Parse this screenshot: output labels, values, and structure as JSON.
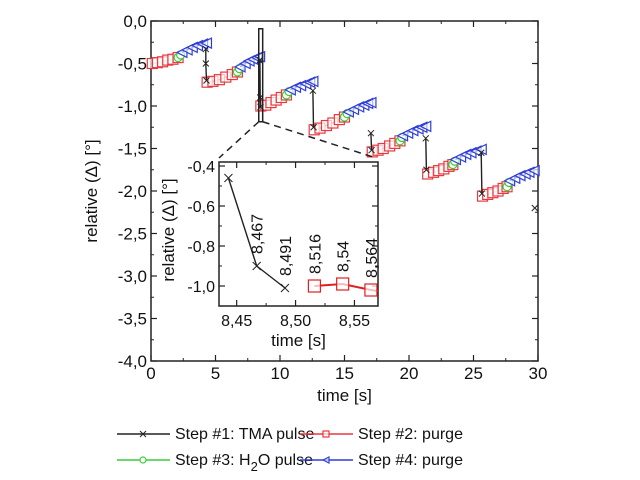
{
  "chart_data": [
    {
      "id": "main",
      "type": "line",
      "title": "",
      "xlabel": "time [s]",
      "ylabel": "relative (Δ) [°]",
      "xlim": [
        0,
        30
      ],
      "ylim": [
        -4.0,
        0.0
      ],
      "xticks": [
        0,
        5,
        10,
        15,
        20,
        25,
        30
      ],
      "xtick_labels": [
        "0",
        "5",
        "10",
        "15",
        "20",
        "25",
        "30"
      ],
      "yticks": [
        0.0,
        -0.5,
        -1.0,
        -1.5,
        -2.0,
        -2.5,
        -3.0,
        -3.5,
        -4.0
      ],
      "ytick_labels": [
        "0,0",
        "-0,5",
        "-1,0",
        "-1,5",
        "-2,0",
        "-2,5",
        "-3,0",
        "-3,5",
        "-4,0"
      ],
      "grid": false,
      "series": [
        {
          "name": "Step #1: TMA pulse",
          "color": "#222222",
          "marker": "x",
          "segments": [
            [
              [
                4.25,
                -0.33
              ],
              [
                4.25,
                -0.5
              ],
              [
                4.3,
                -0.7
              ]
            ],
            [
              [
                8.44,
                -0.46
              ],
              [
                8.467,
                -0.9
              ],
              [
                8.491,
                -1.01
              ]
            ],
            [
              [
                12.55,
                -0.82
              ],
              [
                12.6,
                -1.25
              ]
            ],
            [
              [
                17.05,
                -1.32
              ],
              [
                17.1,
                -1.52
              ]
            ],
            [
              [
                21.3,
                -1.38
              ],
              [
                21.35,
                -1.75
              ]
            ],
            [
              [
                25.6,
                -1.55
              ],
              [
                25.65,
                -2.03
              ]
            ],
            [
              [
                29.75,
                -2.2
              ]
            ]
          ]
        },
        {
          "name": "Step #2: purge",
          "color": "#e8393f",
          "marker": "square",
          "segments": [
            [
              [
                0.1,
                -0.5
              ],
              [
                0.5,
                -0.49
              ],
              [
                0.9,
                -0.48
              ],
              [
                1.3,
                -0.46
              ],
              [
                1.7,
                -0.45
              ],
              [
                2.1,
                -0.43
              ]
            ],
            [
              [
                4.35,
                -0.72
              ],
              [
                4.8,
                -0.71
              ],
              [
                5.3,
                -0.69
              ],
              [
                5.8,
                -0.66
              ],
              [
                6.3,
                -0.63
              ],
              [
                6.7,
                -0.6
              ]
            ],
            [
              [
                8.516,
                -1.0
              ],
              [
                8.9,
                -0.99
              ],
              [
                9.3,
                -0.96
              ],
              [
                9.7,
                -0.93
              ],
              [
                10.1,
                -0.9
              ],
              [
                10.5,
                -0.87
              ]
            ],
            [
              [
                12.65,
                -1.28
              ],
              [
                13.1,
                -1.26
              ],
              [
                13.6,
                -1.23
              ],
              [
                14.1,
                -1.2
              ],
              [
                14.6,
                -1.16
              ],
              [
                15.0,
                -1.13
              ]
            ],
            [
              [
                17.15,
                -1.54
              ],
              [
                17.6,
                -1.52
              ],
              [
                18.0,
                -1.5
              ],
              [
                18.5,
                -1.47
              ],
              [
                18.9,
                -1.44
              ],
              [
                19.3,
                -1.41
              ]
            ],
            [
              [
                21.45,
                -1.8
              ],
              [
                21.9,
                -1.78
              ],
              [
                22.3,
                -1.76
              ],
              [
                22.7,
                -1.74
              ],
              [
                23.1,
                -1.71
              ],
              [
                23.4,
                -1.69
              ]
            ],
            [
              [
                25.7,
                -2.06
              ],
              [
                26.1,
                -2.04
              ],
              [
                26.5,
                -2.02
              ],
              [
                26.9,
                -2.0
              ],
              [
                27.3,
                -1.97
              ],
              [
                27.6,
                -1.95
              ]
            ]
          ]
        },
        {
          "name": "Step #3: H2O pulse",
          "color": "#3ccc3c",
          "marker": "circle",
          "segments": [
            [
              [
                2.1,
                -0.43
              ],
              [
                2.3,
                -0.4
              ]
            ],
            [
              [
                6.7,
                -0.6
              ],
              [
                6.85,
                -0.56
              ]
            ],
            [
              [
                10.5,
                -0.87
              ],
              [
                10.7,
                -0.83
              ]
            ],
            [
              [
                15.0,
                -1.13
              ],
              [
                15.2,
                -1.09
              ]
            ],
            [
              [
                19.3,
                -1.41
              ],
              [
                19.45,
                -1.37
              ]
            ],
            [
              [
                23.4,
                -1.69
              ],
              [
                23.55,
                -1.65
              ]
            ],
            [
              [
                27.6,
                -1.95
              ],
              [
                27.75,
                -1.9
              ]
            ]
          ]
        },
        {
          "name": "Step #4: purge",
          "color": "#2f3fd6",
          "marker": "triangle-left",
          "segments": [
            [
              [
                2.4,
                -0.37
              ],
              [
                2.8,
                -0.34
              ],
              [
                3.2,
                -0.31
              ],
              [
                3.6,
                -0.29
              ],
              [
                4.0,
                -0.27
              ],
              [
                4.3,
                -0.26
              ]
            ],
            [
              [
                6.9,
                -0.54
              ],
              [
                7.3,
                -0.5
              ],
              [
                7.6,
                -0.47
              ],
              [
                7.9,
                -0.45
              ],
              [
                8.2,
                -0.43
              ],
              [
                8.42,
                -0.42
              ]
            ],
            [
              [
                10.8,
                -0.81
              ],
              [
                11.2,
                -0.78
              ],
              [
                11.6,
                -0.76
              ],
              [
                12.0,
                -0.74
              ],
              [
                12.3,
                -0.72
              ],
              [
                12.55,
                -0.71
              ]
            ],
            [
              [
                15.3,
                -1.07
              ],
              [
                15.7,
                -1.04
              ],
              [
                16.1,
                -1.01
              ],
              [
                16.5,
                -0.99
              ],
              [
                16.8,
                -0.97
              ],
              [
                17.05,
                -0.96
              ]
            ],
            [
              [
                19.5,
                -1.35
              ],
              [
                19.9,
                -1.32
              ],
              [
                20.3,
                -1.29
              ],
              [
                20.7,
                -1.27
              ],
              [
                21.0,
                -1.25
              ],
              [
                21.3,
                -1.24
              ]
            ],
            [
              [
                23.6,
                -1.63
              ],
              [
                24.0,
                -1.6
              ],
              [
                24.4,
                -1.57
              ],
              [
                24.8,
                -1.55
              ],
              [
                25.2,
                -1.53
              ],
              [
                25.6,
                -1.51
              ]
            ],
            [
              [
                27.8,
                -1.88
              ],
              [
                28.2,
                -1.85
              ],
              [
                28.6,
                -1.82
              ],
              [
                29.0,
                -1.8
              ],
              [
                29.3,
                -1.78
              ],
              [
                29.7,
                -1.76
              ]
            ]
          ]
        }
      ],
      "zoom_region": {
        "x": [
          8.43,
          8.58
        ],
        "y": [
          -1.15,
          -0.35
        ]
      },
      "legend": {
        "placement": "bottom",
        "entries": [
          {
            "label_prefix": "Step #1: TMA pulse",
            "color": "#222222",
            "marker": "x"
          },
          {
            "label_prefix": "Step #2: purge",
            "color": "#e8393f",
            "marker": "square"
          },
          {
            "label_prefix": "Step #3: H",
            "sub": "2",
            "suffix": "O pulse",
            "color": "#3ccc3c",
            "marker": "circle"
          },
          {
            "label_prefix": "Step #4: purge",
            "color": "#2f3fd6",
            "marker": "triangle-left"
          }
        ]
      }
    },
    {
      "id": "inset",
      "type": "line",
      "title": "",
      "xlabel": "time [s]",
      "ylabel": "relative (Δ) [°]",
      "xlim": [
        8.435,
        8.57
      ],
      "ylim": [
        -1.1,
        -0.38
      ],
      "xticks": [
        8.45,
        8.5,
        8.55
      ],
      "xtick_labels": [
        "8,45",
        "8,50",
        "8,55"
      ],
      "yticks": [
        -0.4,
        -0.6,
        -0.8,
        -1.0
      ],
      "ytick_labels": [
        "-0,4",
        "-0,6",
        "-0,8",
        "-1,0"
      ],
      "grid": false,
      "series": [
        {
          "name": "Step #1: TMA pulse",
          "color": "#222222",
          "marker": "x",
          "points": [
            [
              8.443,
              -0.46
            ],
            [
              8.467,
              -0.9
            ],
            [
              8.491,
              -1.01
            ]
          ]
        },
        {
          "name": "Step #2: purge",
          "color": "#e02020",
          "marker": "square",
          "points": [
            [
              8.516,
              -1.0
            ],
            [
              8.54,
              -0.99
            ],
            [
              8.564,
              -1.02
            ],
            [
              8.575,
              -1.03
            ]
          ]
        }
      ],
      "annotations": [
        {
          "text": "8,467",
          "x": 8.467,
          "y": -0.9
        },
        {
          "text": "8,491",
          "x": 8.491,
          "y": -1.01
        },
        {
          "text": "8,516",
          "x": 8.516,
          "y": -1.0
        },
        {
          "text": "8,54",
          "x": 8.54,
          "y": -0.99
        },
        {
          "text": "8,564",
          "x": 8.564,
          "y": -1.02
        }
      ]
    }
  ]
}
